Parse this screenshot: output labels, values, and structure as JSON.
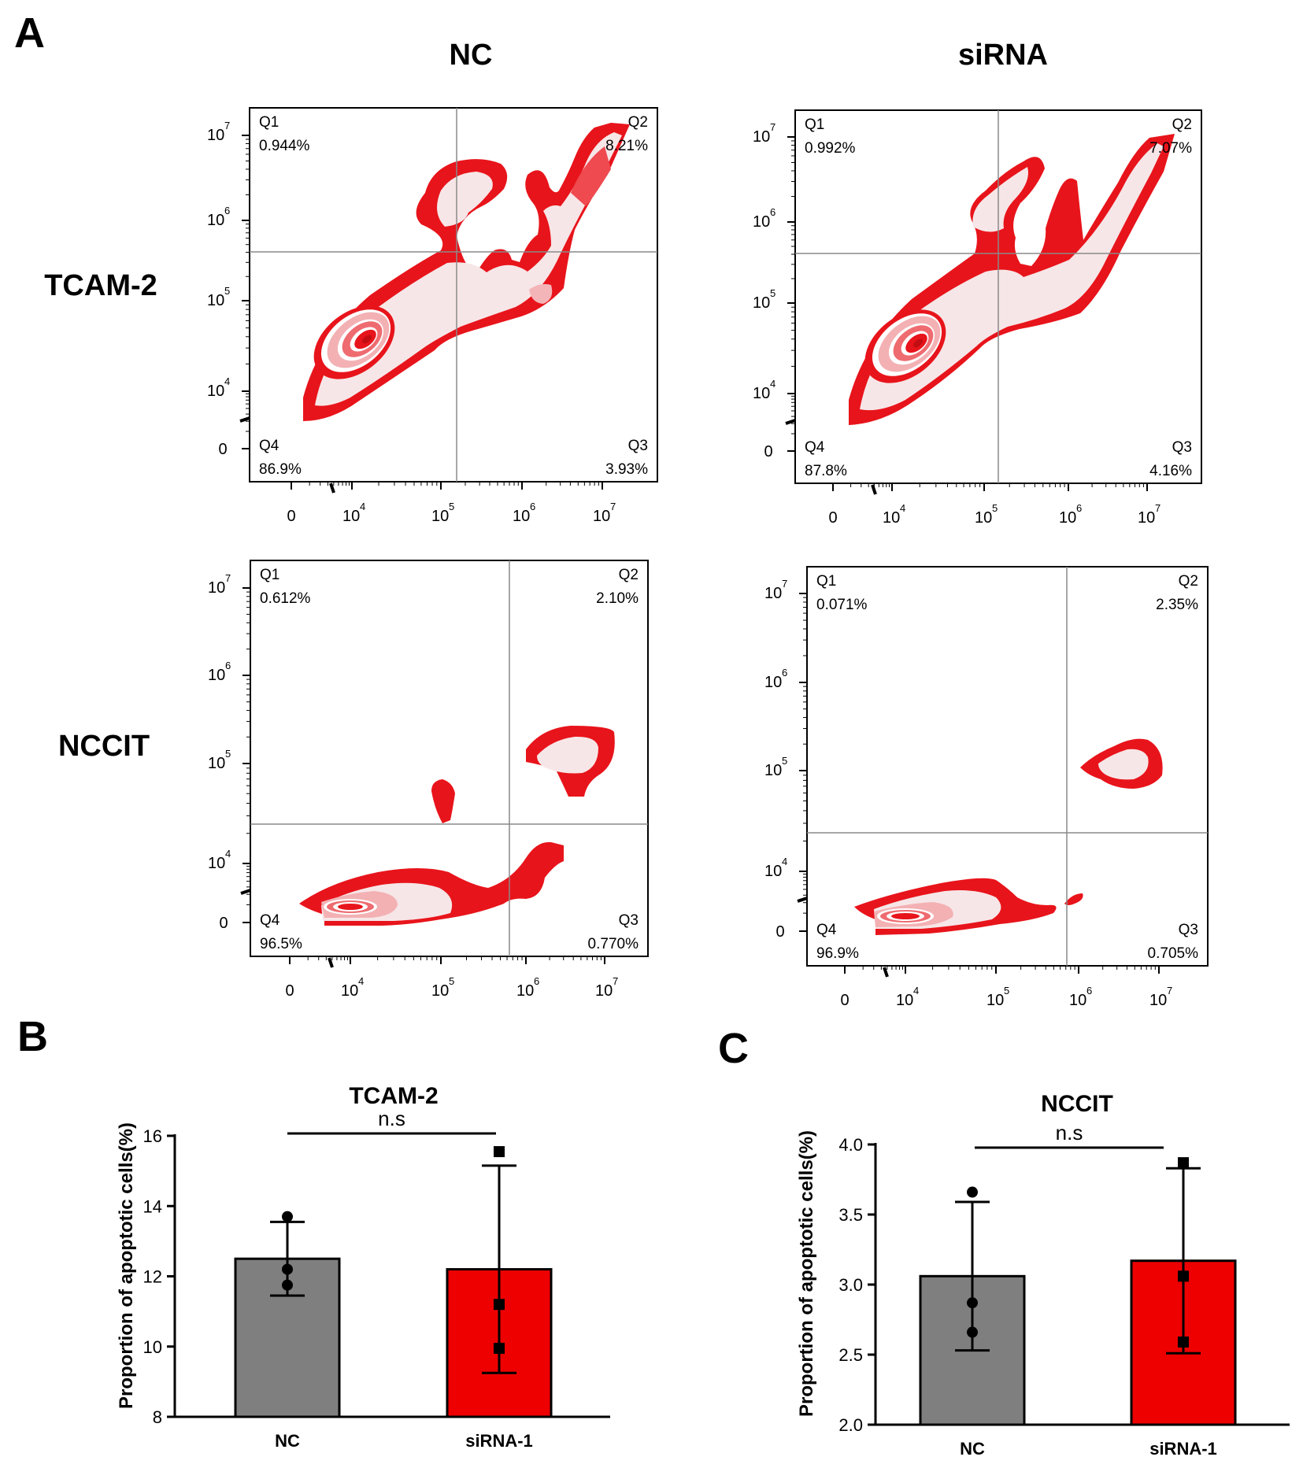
{
  "panels": {
    "A": "A",
    "B": "B",
    "C": "C"
  },
  "flow": {
    "column_titles": [
      "NC",
      "siRNA"
    ],
    "row_titles": [
      "TCAM-2",
      "NCCIT"
    ],
    "axis_tick_labels": [
      "0",
      "10",
      "10",
      "10",
      "10"
    ],
    "axis_tick_exponents": [
      "",
      "4",
      "5",
      "6",
      "7"
    ],
    "colors": {
      "contour_outer": "#e8141b",
      "contour_inner": "#f7e6e7",
      "gate_line": "#8a8a8a"
    },
    "plots": [
      {
        "row": "TCAM-2",
        "column": "NC",
        "quadrants": [
          {
            "name": "Q1",
            "percent": "0.944%"
          },
          {
            "name": "Q2",
            "percent": "8.21%"
          },
          {
            "name": "Q3",
            "percent": "3.93%"
          },
          {
            "name": "Q4",
            "percent": "86.9%"
          }
        ]
      },
      {
        "row": "TCAM-2",
        "column": "siRNA",
        "quadrants": [
          {
            "name": "Q1",
            "percent": "0.992%"
          },
          {
            "name": "Q2",
            "percent": "7.07%"
          },
          {
            "name": "Q3",
            "percent": "4.16%"
          },
          {
            "name": "Q4",
            "percent": "87.8%"
          }
        ]
      },
      {
        "row": "NCCIT",
        "column": "NC",
        "quadrants": [
          {
            "name": "Q1",
            "percent": "0.612%"
          },
          {
            "name": "Q2",
            "percent": "2.10%"
          },
          {
            "name": "Q3",
            "percent": "0.770%"
          },
          {
            "name": "Q4",
            "percent": "96.5%"
          }
        ]
      },
      {
        "row": "NCCIT",
        "column": "siRNA",
        "quadrants": [
          {
            "name": "Q1",
            "percent": "0.071%"
          },
          {
            "name": "Q2",
            "percent": "2.35%"
          },
          {
            "name": "Q3",
            "percent": "0.705%"
          },
          {
            "name": "Q4",
            "percent": "96.9%"
          }
        ]
      }
    ]
  },
  "chart_data": [
    {
      "type": "bar",
      "title": "TCAM-2",
      "ylabel": "Proportion of apoptotic cells(%)",
      "xlabel": "",
      "categories": [
        "NC",
        "siRNA-1"
      ],
      "values": [
        12.5,
        12.2
      ],
      "error": [
        1.05,
        2.95
      ],
      "points": [
        [
          13.7,
          12.2,
          11.75
        ],
        [
          15.55,
          11.2,
          9.95
        ]
      ],
      "point_markers": [
        "circle",
        "square"
      ],
      "colors": [
        "#7f7f7f",
        "#ee0000"
      ],
      "ylim": [
        8,
        16
      ],
      "yticks": [
        8,
        10,
        12,
        14,
        16
      ],
      "significance": "n.s"
    },
    {
      "type": "bar",
      "title": "NCCIT",
      "ylabel": "Proportion of apoptotic cells(%)",
      "xlabel": "",
      "categories": [
        "NC",
        "siRNA-1"
      ],
      "values": [
        3.06,
        3.17
      ],
      "error": [
        0.53,
        0.66
      ],
      "points": [
        [
          3.66,
          2.87,
          2.66
        ],
        [
          3.87,
          3.06,
          2.59
        ]
      ],
      "point_markers": [
        "circle",
        "square"
      ],
      "colors": [
        "#7f7f7f",
        "#ee0000"
      ],
      "ylim": [
        2.0,
        4.0
      ],
      "yticks": [
        "2.0",
        "2.5",
        "3.0",
        "3.5",
        "4.0"
      ],
      "significance": "n.s"
    }
  ]
}
